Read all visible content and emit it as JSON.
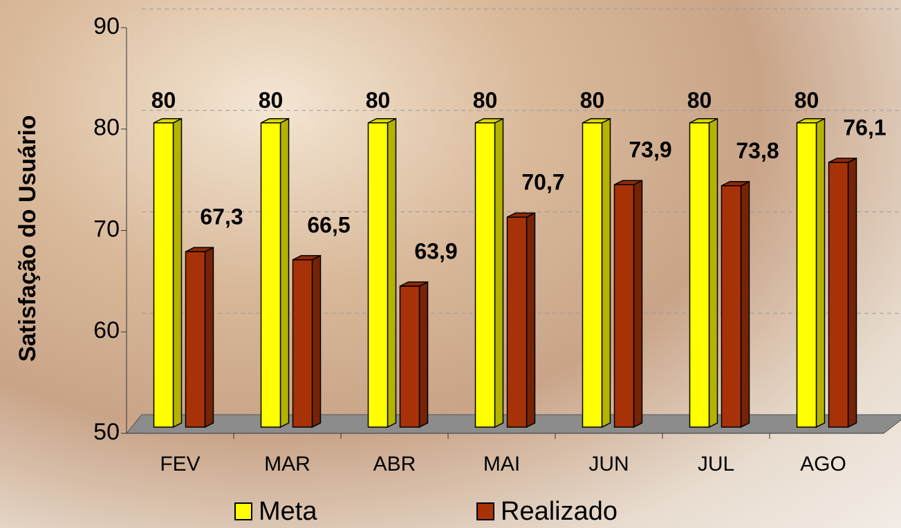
{
  "chart_data": {
    "type": "bar3d",
    "y_label": "Satisfação do Usuário",
    "categories": [
      "FEV",
      "MAR",
      "ABR",
      "MAI",
      "JUN",
      "JUL",
      "AGO"
    ],
    "series": [
      {
        "name": "Meta",
        "color": "#ffff00",
        "values": [
          80,
          80,
          80,
          80,
          80,
          80,
          80
        ]
      },
      {
        "name": "Realizado",
        "color": "#a83208",
        "values": [
          67.3,
          66.5,
          63.9,
          70.7,
          73.9,
          73.8,
          76.1
        ],
        "value_labels": [
          "67,3",
          "66,5",
          "63,9",
          "70,7",
          "73,9",
          "73,8",
          "76,1"
        ]
      }
    ],
    "ylim": [
      50,
      90
    ],
    "yticks": [
      50,
      60,
      70,
      80,
      90
    ],
    "grid": true,
    "legend": "bottom"
  }
}
